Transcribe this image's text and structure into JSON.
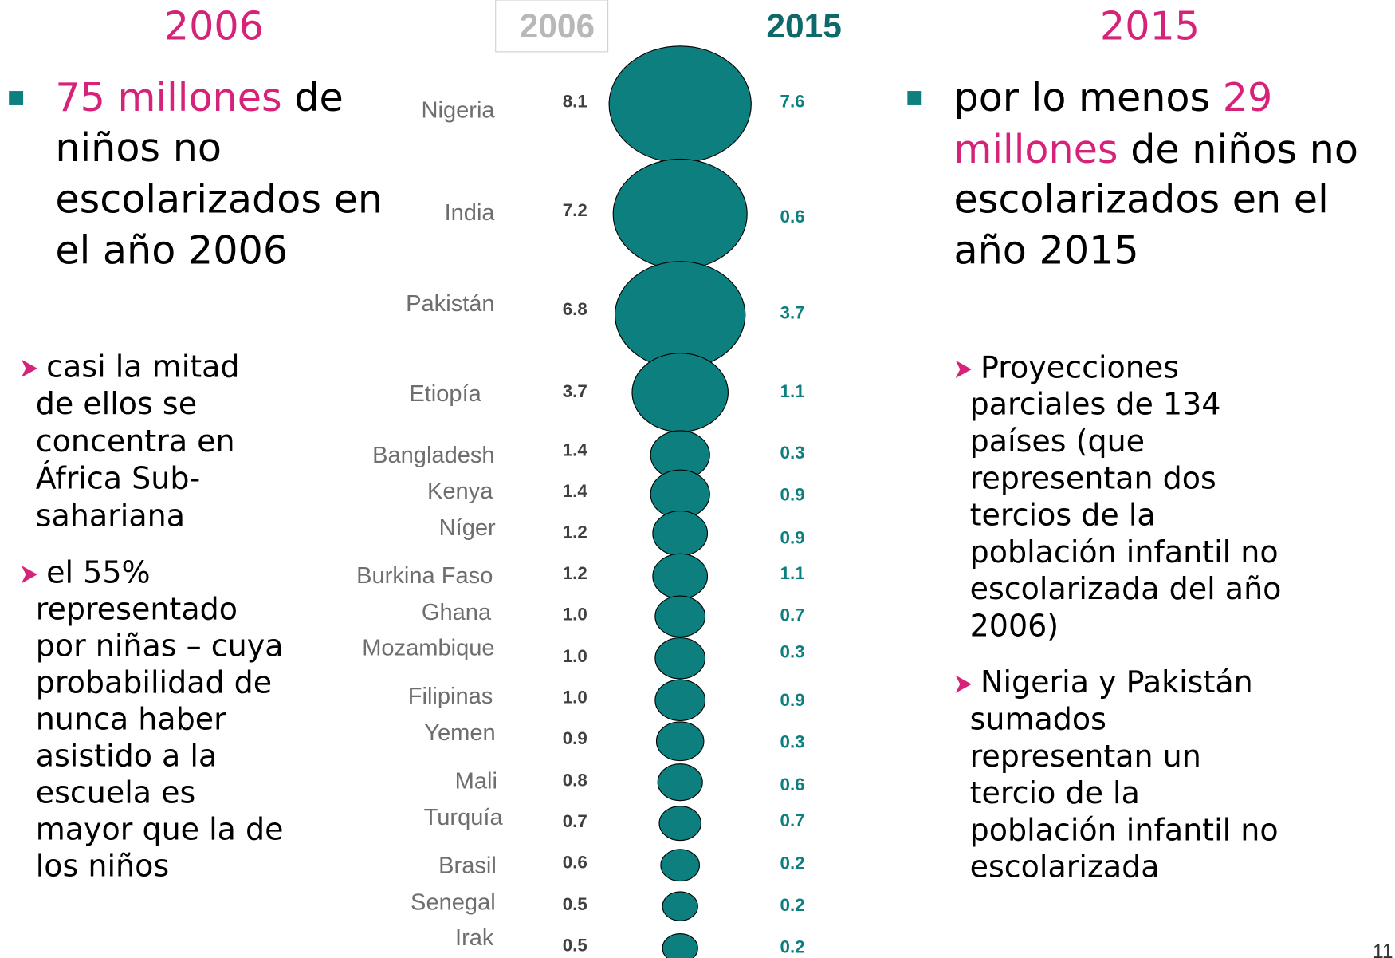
{
  "chart_data": {
    "type": "bubble",
    "header_2006": "2006",
    "header_2015": "2015",
    "categories": [
      "Nigeria",
      "India",
      "Pakistán",
      "Etiopía",
      "Bangladesh",
      "Kenya",
      "Níger",
      "Burkina Faso",
      "Ghana",
      "Mozambique",
      "Filipinas",
      "Yemen",
      "Mali",
      "Turquía",
      "Brasil",
      "Senegal",
      "Irak"
    ],
    "series": [
      {
        "name": "2006",
        "color": "#0e7f7f",
        "values": [
          8.1,
          7.2,
          6.8,
          3.7,
          1.4,
          1.4,
          1.2,
          1.2,
          1.0,
          1.0,
          1.0,
          0.9,
          0.8,
          0.7,
          0.6,
          0.5,
          0.5
        ],
        "value_labels": [
          "8.1",
          "7.2",
          "6.8",
          "3.7",
          "1.4",
          "1.4",
          "1.2",
          "1.2",
          "1.0",
          "1.0",
          "1.0",
          "0.9",
          "0.8",
          "0.7",
          "0.6",
          "0.5",
          "0.5"
        ]
      },
      {
        "name": "2015",
        "color": "#0e7f7f",
        "values": [
          7.6,
          0.6,
          3.7,
          1.1,
          0.3,
          0.9,
          0.9,
          1.1,
          0.7,
          0.3,
          0.9,
          0.3,
          0.6,
          0.7,
          0.2,
          0.2,
          0.2
        ]
      }
    ]
  },
  "left": {
    "title": "2006",
    "main_lines": [
      [
        {
          "text": "75 millones",
          "color": "#d6237a"
        },
        {
          "text": " de",
          "color": "#000000"
        }
      ],
      [
        {
          "text": "niños no",
          "color": "#000000"
        }
      ],
      [
        {
          "text": "escolarizados en",
          "color": "#000000"
        }
      ],
      [
        {
          "text": "el año 2006",
          "color": "#000000"
        }
      ]
    ],
    "sub_bullets": [
      [
        "casi la mitad",
        "de ellos se",
        "concentra en",
        "África Sub-",
        "sahariana"
      ],
      [
        "el 55%",
        "representado",
        "por niñas – cuya",
        "probabilidad de",
        "nunca haber",
        "asistido a la",
        "escuela es",
        "mayor que la de",
        "los niños"
      ]
    ]
  },
  "right": {
    "title": "2015",
    "main_lines": [
      [
        {
          "text": "por lo menos ",
          "color": "#000000"
        },
        {
          "text": "29",
          "color": "#d6237a"
        }
      ],
      [
        {
          "text": "millones",
          "color": "#d6237a"
        },
        {
          "text": " de niños no",
          "color": "#000000"
        }
      ],
      [
        {
          "text": "escolarizados en el",
          "color": "#000000"
        }
      ],
      [
        {
          "text": "año 2015",
          "color": "#000000"
        }
      ]
    ],
    "sub_bullets": [
      [
        "Proyecciones",
        "parciales de 134",
        "países (que",
        "representan dos",
        "tercios de la",
        "población infantil no",
        "escolarizada del año",
        "2006)"
      ],
      [
        "Nigeria y Pakistán",
        "sumados",
        "representan un",
        "tercio de la",
        "población infantil no",
        "escolarizada"
      ]
    ]
  },
  "page_number": "11"
}
